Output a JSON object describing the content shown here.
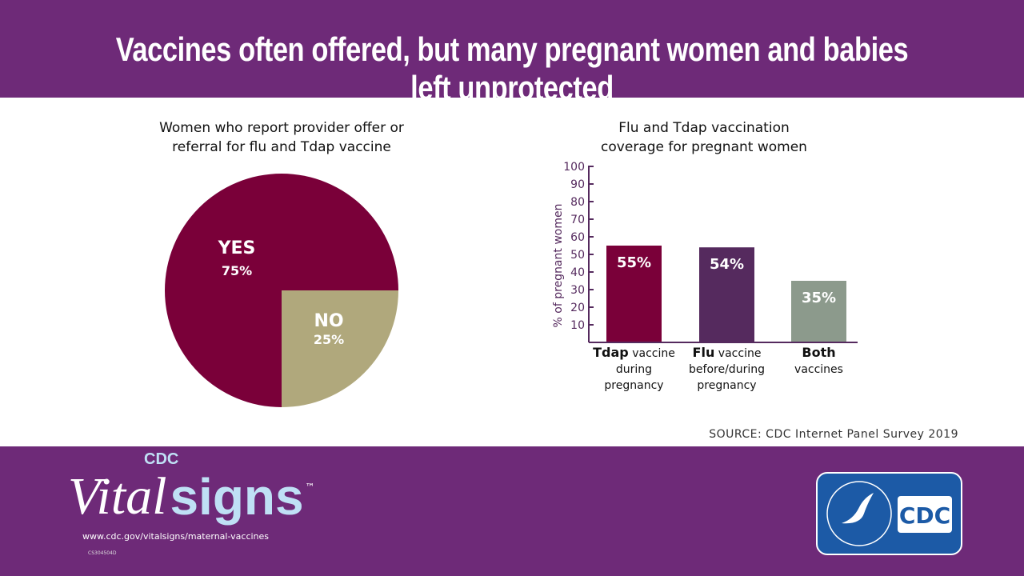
{
  "title": "Vaccines often offered, but many pregnant women and babies left unprotected",
  "source": "SOURCE: CDC Internet Panel Survey 2019",
  "footer": {
    "brand_cdc": "CDC",
    "brand_vital": "Vital",
    "brand_signs": "signs",
    "tm": "™",
    "url": "www.cdc.gov/vitalsigns/maternal-vaccines",
    "code": "CS304504D",
    "logo_text": "CDC"
  },
  "colors": {
    "header": "#6e2a78",
    "yes": "#7a0039",
    "no": "#b0a87c",
    "tdap": "#7a0039",
    "flu": "#552a5e",
    "both": "#8c9a8c"
  },
  "chart_data": [
    {
      "type": "pie",
      "title_lines": [
        "Women who report provider offer or",
        "referral for flu and Tdap vaccine"
      ],
      "slices": [
        {
          "label": "YES",
          "value": 75,
          "value_label": "75%"
        },
        {
          "label": "NO",
          "value": 25,
          "value_label": "25%"
        }
      ]
    },
    {
      "type": "bar",
      "title_lines": [
        "Flu and Tdap vaccination",
        "coverage for pregnant women"
      ],
      "ylabel": "% of pregnant women",
      "ylim": [
        0,
        100
      ],
      "yticks": [
        10,
        20,
        30,
        40,
        50,
        60,
        70,
        80,
        90,
        100
      ],
      "categories": [
        {
          "bold": "Tdap",
          "rest": " vaccine",
          "lines": [
            "during",
            "pregnancy"
          ]
        },
        {
          "bold": "Flu",
          "rest": " vaccine",
          "lines": [
            "before/during",
            "pregnancy"
          ]
        },
        {
          "bold": "Both",
          "rest": "",
          "lines": [
            "vaccines"
          ]
        }
      ],
      "values": [
        55,
        54,
        35
      ],
      "value_labels": [
        "55%",
        "54%",
        "35%"
      ]
    }
  ]
}
